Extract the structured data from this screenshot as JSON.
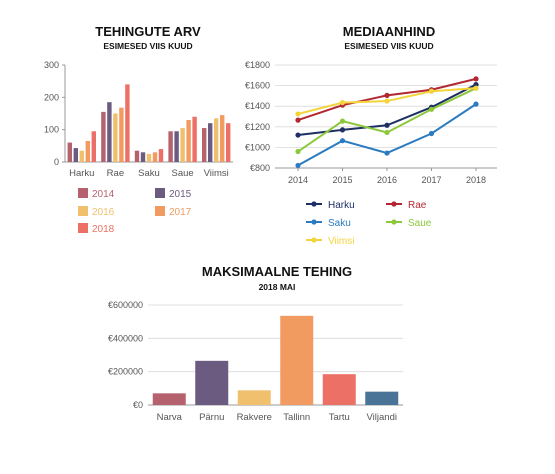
{
  "chart_data": [
    {
      "type": "bar",
      "title": "TEHINGUTE ARV",
      "subtitle": "ESIMESED VIIS KUUD",
      "categories": [
        "Harku",
        "Rae",
        "Saku",
        "Saue",
        "Viimsi"
      ],
      "ylim": [
        0,
        300
      ],
      "yticks": [
        "0",
        "100",
        "200",
        "300"
      ],
      "grid": false,
      "legend_position": "bottom",
      "series": [
        {
          "name": "2014",
          "color": "#b5616e",
          "values": [
            60,
            155,
            35,
            95,
            105
          ]
        },
        {
          "name": "2015",
          "color": "#6b5b80",
          "values": [
            43,
            185,
            30,
            95,
            120
          ]
        },
        {
          "name": "2016",
          "color": "#f0c06e",
          "values": [
            35,
            150,
            25,
            105,
            135
          ]
        },
        {
          "name": "2017",
          "color": "#f29b61",
          "values": [
            65,
            168,
            30,
            130,
            145
          ]
        },
        {
          "name": "2018",
          "color": "#ec7065",
          "values": [
            95,
            240,
            40,
            140,
            120
          ]
        }
      ]
    },
    {
      "type": "line",
      "title": "MEDIAANHIND",
      "subtitle": "ESIMESED VIIS KUUD",
      "x": [
        "2014",
        "2015",
        "2016",
        "2017",
        "2018"
      ],
      "ylim": [
        800,
        1800
      ],
      "yticks": [
        "€800",
        "€1000",
        "€1200",
        "€1400",
        "€1600",
        "€1800"
      ],
      "grid": true,
      "legend_position": "bottom",
      "series": [
        {
          "name": "Harku",
          "color": "#1d2f63",
          "values": [
            1120,
            1170,
            1215,
            1390,
            1610
          ]
        },
        {
          "name": "Rae",
          "color": "#b22732",
          "values": [
            1265,
            1410,
            1505,
            1560,
            1665
          ]
        },
        {
          "name": "Saku",
          "color": "#2b7bc1",
          "values": [
            825,
            1065,
            945,
            1135,
            1420
          ]
        },
        {
          "name": "Saue",
          "color": "#8cc83c",
          "values": [
            960,
            1255,
            1145,
            1370,
            1575
          ]
        },
        {
          "name": "Viimsi",
          "color": "#f3d43a",
          "values": [
            1325,
            1435,
            1450,
            1545,
            1575
          ]
        }
      ]
    },
    {
      "type": "bar",
      "title": "MAKSIMAALNE TEHING",
      "subtitle": "2018 MAI",
      "categories": [
        "Narva",
        "Pärnu",
        "Rakvere",
        "Tallinn",
        "Tartu",
        "Viljandi"
      ],
      "ylim": [
        0,
        600000
      ],
      "yticks": [
        "€0",
        "€200000",
        "€400000",
        "€600000"
      ],
      "grid": true,
      "values": [
        70000,
        265000,
        88000,
        535000,
        185000,
        80000
      ],
      "colors": [
        "#b5616e",
        "#6b5b80",
        "#f0c06e",
        "#f29b61",
        "#ec7065",
        "#4a7398"
      ]
    }
  ]
}
